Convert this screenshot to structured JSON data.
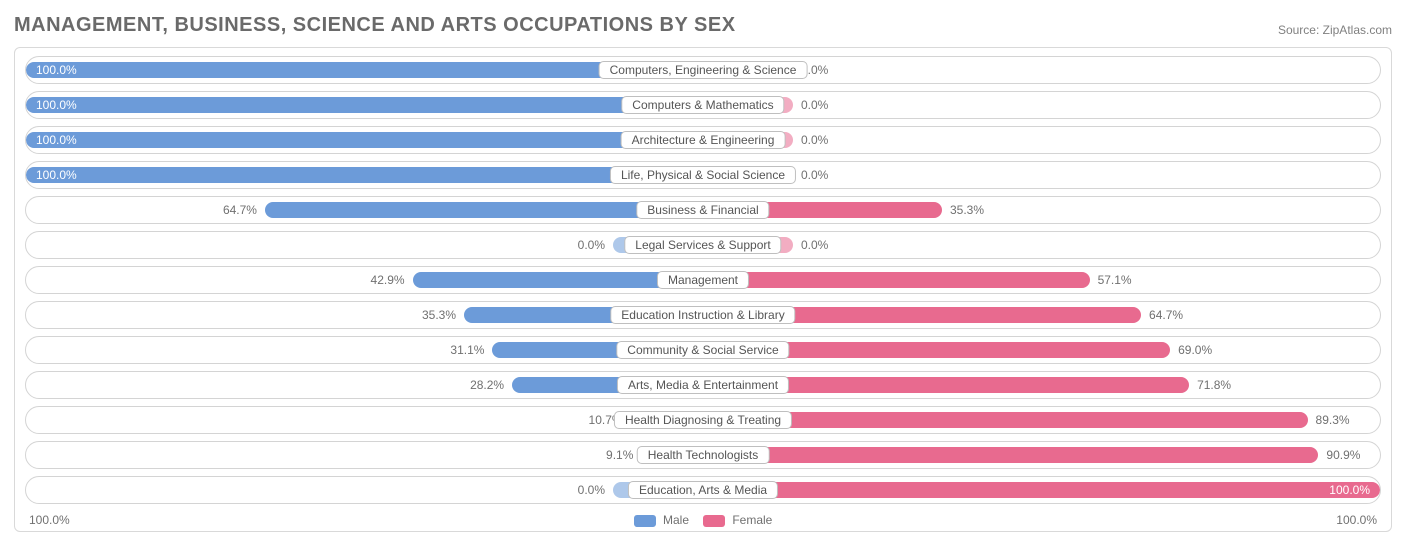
{
  "title": "MANAGEMENT, BUSINESS, SCIENCE AND ARTS OCCUPATIONS BY SEX",
  "source_label": "Source:",
  "source_name": "ZipAtlas.com",
  "colors": {
    "title": "#6a6a6a",
    "source": "#808080",
    "border": "#d9d9d9",
    "row_border": "#d4d4d4",
    "label_border": "#bfbfbf",
    "male": "#6c9bd9",
    "female": "#e86a8f",
    "pct_text": "#707070",
    "axis_text": "#707070",
    "bg": "#ffffff"
  },
  "legend": {
    "male": "Male",
    "female": "Female"
  },
  "axis": {
    "left": "100.0%",
    "right": "100.0%"
  },
  "default_bar_min_width": 90,
  "rows": [
    {
      "label": "Computers, Engineering & Science",
      "male": 100.0,
      "female": 0.0
    },
    {
      "label": "Computers & Mathematics",
      "male": 100.0,
      "female": 0.0
    },
    {
      "label": "Architecture & Engineering",
      "male": 100.0,
      "female": 0.0
    },
    {
      "label": "Life, Physical & Social Science",
      "male": 100.0,
      "female": 0.0
    },
    {
      "label": "Business & Financial",
      "male": 64.7,
      "female": 35.3
    },
    {
      "label": "Legal Services & Support",
      "male": 0.0,
      "female": 0.0
    },
    {
      "label": "Management",
      "male": 42.9,
      "female": 57.1
    },
    {
      "label": "Education Instruction & Library",
      "male": 35.3,
      "female": 64.7
    },
    {
      "label": "Community & Social Service",
      "male": 31.1,
      "female": 69.0
    },
    {
      "label": "Arts, Media & Entertainment",
      "male": 28.2,
      "female": 71.8
    },
    {
      "label": "Health Diagnosing & Treating",
      "male": 10.7,
      "female": 89.3
    },
    {
      "label": "Health Technologists",
      "male": 9.1,
      "female": 90.9
    },
    {
      "label": "Education, Arts & Media",
      "male": 0.0,
      "female": 100.0
    }
  ]
}
